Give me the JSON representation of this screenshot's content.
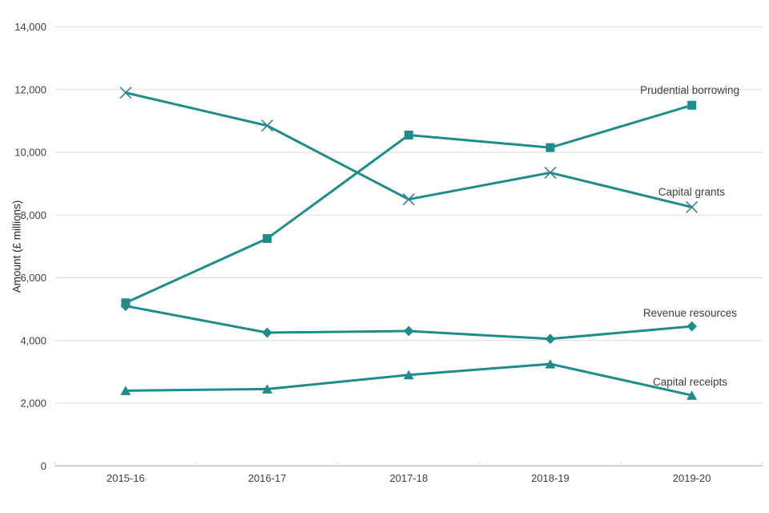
{
  "chart_data": {
    "type": "line",
    "title": "",
    "xlabel": "",
    "ylabel": "Amount (£ millions)",
    "categories": [
      "2015-16",
      "2016-17",
      "2017-18",
      "2018-19",
      "2019-20"
    ],
    "series": [
      {
        "name": "Prudential borrowing",
        "marker": "square",
        "values": [
          5200,
          7250,
          10550,
          10150,
          11500
        ]
      },
      {
        "name": "Capital grants",
        "marker": "x",
        "values": [
          11900,
          10850,
          8500,
          9350,
          8250
        ]
      },
      {
        "name": "Revenue resources",
        "marker": "diamond",
        "values": [
          5100,
          4250,
          4300,
          4050,
          4450
        ]
      },
      {
        "name": "Capital receipts",
        "marker": "triangle",
        "values": [
          2400,
          2450,
          2900,
          3250,
          2250
        ]
      }
    ],
    "ylim": [
      0,
      14000
    ],
    "ytick_step": 2000,
    "ytick_labels": [
      "0",
      "2,000",
      "4,000",
      "6,000",
      "8,000",
      "10,000",
      "12,000",
      "14,000"
    ],
    "grid": true,
    "legend_position": "direct-labels-at-line-end",
    "label_anchors": [
      {
        "x": 923,
        "y": 117,
        "anchor": "end"
      },
      {
        "x": 905,
        "y": 244,
        "anchor": "end"
      },
      {
        "x": 920,
        "y": 395,
        "anchor": "end"
      },
      {
        "x": 908,
        "y": 481,
        "anchor": "end"
      }
    ],
    "colors": {
      "line": "#1f8c8c",
      "x_marker_stroke": "#35858d",
      "grid": "#dedede",
      "axis": "#c2c2c2",
      "tick_text": "#404040",
      "label_text": "#3d3d3d"
    }
  }
}
